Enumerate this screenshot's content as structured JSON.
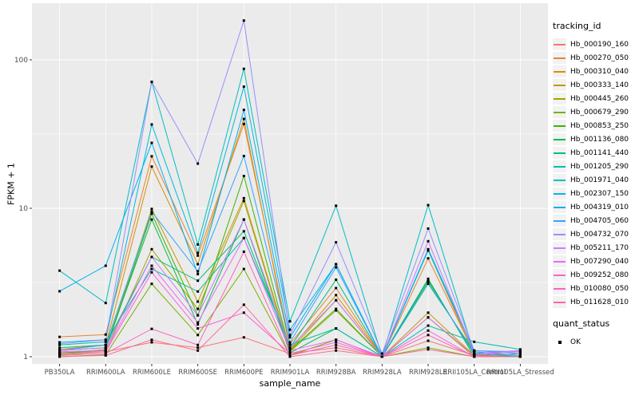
{
  "figure": {
    "y_axis": {
      "label": "FPKM + 1"
    },
    "x_axis": {
      "label": "sample_name"
    },
    "legend": {
      "tracking_title": "tracking_id",
      "quant_title": "quant_status",
      "quant_items": [
        {
          "label": "OK",
          "marker": "black-square"
        }
      ]
    },
    "colors": {
      "panel": "#EBEBEB",
      "grid": "#FFFFFF",
      "point": "#000000",
      "tick_label": "#4D4D4D",
      "tick_mark": "#333333",
      "legend_key": "#F2F2F2"
    }
  },
  "chart_data": {
    "type": "line",
    "title": "",
    "xlabel": "sample_name",
    "ylabel": "FPKM + 1",
    "y_scale": "log10",
    "ylim": [
      0.9,
      240
    ],
    "y_ticks": [
      1,
      10,
      100
    ],
    "grid": true,
    "legend_position": "right",
    "point_marker": "black-square",
    "point_status_label": "OK",
    "x_categories": [
      "PB350LA",
      "RRIM600LA",
      "RRIM600LE",
      "RRIM600SE",
      "RRIM600PE",
      "RRIM901LA",
      "RRIM928BA",
      "RRIM928LA",
      "RRIM928LE",
      "RRII105LA_Control",
      "RRII105LA_Stressed"
    ],
    "series": [
      {
        "name": "Hb_000190_160",
        "color": "#F8766D",
        "values": [
          1.05,
          1.08,
          1.25,
          1.15,
          1.35,
          1.05,
          1.15,
          1.0,
          1.28,
          1.02,
          1.0
        ]
      },
      {
        "name": "Hb_000270_050",
        "color": "#EA8331",
        "values": [
          1.36,
          1.41,
          22.4,
          4.8,
          37,
          1.22,
          2.9,
          1.0,
          4.6,
          1.05,
          1.0
        ]
      },
      {
        "name": "Hb_000310_040",
        "color": "#D89000",
        "values": [
          1.12,
          1.2,
          19.1,
          4.2,
          40,
          1.12,
          2.6,
          1.0,
          5.2,
          1.03,
          1.0
        ]
      },
      {
        "name": "Hb_000333_140",
        "color": "#C09B00",
        "values": [
          1.05,
          1.12,
          9.9,
          2.35,
          11.7,
          1.1,
          2.4,
          1.0,
          1.98,
          1.02,
          1.0
        ]
      },
      {
        "name": "Hb_000445_260",
        "color": "#A3A500",
        "values": [
          1.03,
          1.08,
          5.3,
          2.1,
          11.2,
          1.08,
          2.05,
          1.0,
          1.84,
          1.0,
          1.0
        ]
      },
      {
        "name": "Hb_000679_290",
        "color": "#7CAE00",
        "values": [
          1.0,
          1.03,
          3.1,
          1.4,
          3.9,
          1.02,
          1.3,
          1.0,
          1.15,
          1.0,
          1.0
        ]
      },
      {
        "name": "Hb_000853_250",
        "color": "#39B600",
        "values": [
          1.06,
          1.1,
          9.2,
          1.9,
          16.5,
          1.1,
          2.1,
          1.0,
          3.25,
          1.04,
          1.0
        ]
      },
      {
        "name": "Hb_001136_080",
        "color": "#00BB4E",
        "values": [
          1.1,
          1.15,
          8.4,
          1.65,
          8.4,
          1.06,
          1.55,
          1.0,
          3.35,
          1.0,
          1.0
        ]
      },
      {
        "name": "Hb_001141_440",
        "color": "#00BF7D",
        "values": [
          1.15,
          1.2,
          4.7,
          3.25,
          7.0,
          1.15,
          3.3,
          1.0,
          3.1,
          1.08,
          1.02
        ]
      },
      {
        "name": "Hb_001205_290",
        "color": "#00C1A3",
        "values": [
          1.2,
          1.26,
          3.9,
          2.75,
          6.3,
          1.2,
          1.55,
          1.0,
          1.62,
          1.26,
          1.12
        ]
      },
      {
        "name": "Hb_001971_040",
        "color": "#00BFC4",
        "values": [
          3.8,
          2.3,
          71,
          5.7,
          87,
          1.73,
          10.4,
          1.0,
          10.5,
          1.05,
          1.0
        ]
      },
      {
        "name": "Hb_002307_150",
        "color": "#00BAE0",
        "values": [
          1.25,
          1.3,
          36.7,
          5.0,
          66,
          1.52,
          4.2,
          1.0,
          5.2,
          1.08,
          1.0
        ]
      },
      {
        "name": "Hb_004319_010",
        "color": "#00B0F6",
        "values": [
          2.76,
          4.1,
          27.6,
          3.6,
          46,
          1.35,
          4.2,
          1.0,
          5.3,
          1.1,
          1.05
        ]
      },
      {
        "name": "Hb_004705_060",
        "color": "#35A2FF",
        "values": [
          1.1,
          1.2,
          9.5,
          3.76,
          22.5,
          1.25,
          4.0,
          1.0,
          3.2,
          1.05,
          1.1
        ]
      },
      {
        "name": "Hb_004732_070",
        "color": "#9590FF",
        "values": [
          1.22,
          1.3,
          71,
          20,
          184,
          1.4,
          5.9,
          1.05,
          7.3,
          1.1,
          1.08
        ]
      },
      {
        "name": "Hb_005211_170",
        "color": "#C77CFF",
        "values": [
          1.1,
          1.15,
          4.7,
          1.9,
          8.4,
          1.15,
          2.4,
          1.0,
          6.0,
          1.05,
          1.08
        ]
      },
      {
        "name": "Hb_007290_040",
        "color": "#E76BF3",
        "values": [
          1.08,
          1.1,
          4.1,
          1.7,
          6.3,
          1.1,
          1.3,
          1.0,
          1.84,
          1.02,
          1.1
        ]
      },
      {
        "name": "Hb_009252_080",
        "color": "#FA62DB",
        "values": [
          1.05,
          1.08,
          3.7,
          1.55,
          1.98,
          1.05,
          1.25,
          1.0,
          1.5,
          1.0,
          1.05
        ]
      },
      {
        "name": "Hb_010080_050",
        "color": "#FF62BC",
        "values": [
          1.02,
          1.05,
          1.54,
          1.2,
          5.1,
          1.02,
          1.2,
          1.0,
          1.4,
          1.0,
          1.0
        ]
      },
      {
        "name": "Hb_011628_010",
        "color": "#FF6A98",
        "values": [
          1.0,
          1.02,
          1.3,
          1.1,
          2.24,
          1.0,
          1.1,
          1.0,
          1.12,
          1.0,
          1.0
        ]
      }
    ]
  }
}
